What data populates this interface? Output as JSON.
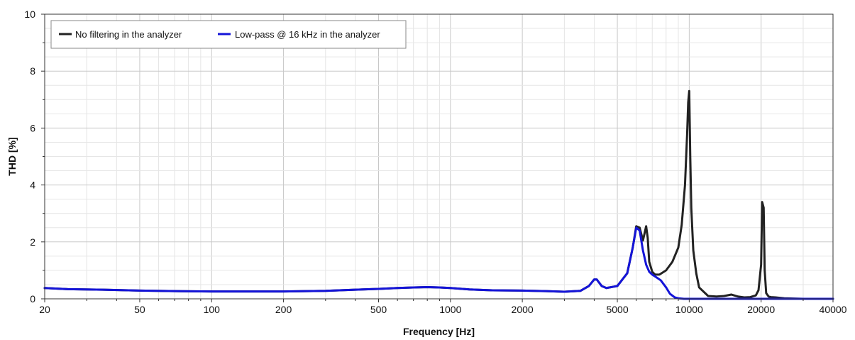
{
  "chart_data": {
    "type": "line",
    "title": "",
    "xlabel": "Frequency [Hz]",
    "ylabel": "THD [%]",
    "xscale": "log",
    "xlim": [
      20,
      40000
    ],
    "ylim": [
      0,
      10
    ],
    "grid": true,
    "legend_position": "top-left",
    "x_ticks": [
      20,
      50,
      100,
      200,
      500,
      1000,
      2000,
      5000,
      10000,
      20000,
      40000
    ],
    "y_ticks": [
      0,
      2,
      4,
      6,
      8,
      10
    ],
    "series": [
      {
        "name": "No filtering in the analyzer",
        "color": "#222222",
        "x": [
          20,
          25,
          35,
          50,
          70,
          100,
          150,
          200,
          300,
          400,
          500,
          600,
          700,
          800,
          900,
          1000,
          1200,
          1500,
          2000,
          2500,
          3000,
          3500,
          3800,
          4000,
          4100,
          4300,
          4500,
          5000,
          5500,
          5800,
          6000,
          6200,
          6400,
          6500,
          6600,
          6700,
          6800,
          7000,
          7200,
          7500,
          8000,
          8500,
          9000,
          9300,
          9600,
          9800,
          9900,
          10000,
          10100,
          10200,
          10400,
          10700,
          11000,
          12000,
          13000,
          14000,
          15000,
          16000,
          17000,
          18000,
          19000,
          19500,
          20000,
          20200,
          20500,
          20700,
          21000,
          21500,
          22000,
          23000,
          25000,
          30000,
          40000
        ],
        "values": [
          0.38,
          0.34,
          0.32,
          0.29,
          0.27,
          0.26,
          0.26,
          0.26,
          0.28,
          0.32,
          0.35,
          0.38,
          0.4,
          0.41,
          0.4,
          0.38,
          0.33,
          0.3,
          0.29,
          0.27,
          0.25,
          0.28,
          0.45,
          0.68,
          0.68,
          0.45,
          0.38,
          0.45,
          0.9,
          1.8,
          2.55,
          2.5,
          2.05,
          2.3,
          2.55,
          2.15,
          1.3,
          0.95,
          0.85,
          0.85,
          1.0,
          1.3,
          1.8,
          2.6,
          4.0,
          5.8,
          6.9,
          7.3,
          5.0,
          3.2,
          1.7,
          0.9,
          0.4,
          0.1,
          0.08,
          0.1,
          0.15,
          0.08,
          0.05,
          0.06,
          0.12,
          0.3,
          1.2,
          3.4,
          3.2,
          1.0,
          0.2,
          0.08,
          0.06,
          0.05,
          0.02,
          0.0,
          0.0
        ]
      },
      {
        "name": "Low-pass @ 16 kHz in the analyzer",
        "color": "#1414d8",
        "x": [
          20,
          25,
          35,
          50,
          70,
          100,
          150,
          200,
          300,
          400,
          500,
          600,
          700,
          800,
          900,
          1000,
          1200,
          1500,
          2000,
          2500,
          3000,
          3500,
          3800,
          4000,
          4100,
          4300,
          4500,
          5000,
          5500,
          5800,
          6000,
          6200,
          6400,
          6600,
          6800,
          7000,
          7300,
          7600,
          8000,
          8300,
          8700,
          9000,
          9500,
          10000,
          12000,
          20000,
          40000
        ],
        "values": [
          0.38,
          0.34,
          0.32,
          0.29,
          0.27,
          0.26,
          0.26,
          0.26,
          0.28,
          0.32,
          0.35,
          0.38,
          0.4,
          0.41,
          0.4,
          0.38,
          0.33,
          0.3,
          0.29,
          0.27,
          0.25,
          0.28,
          0.45,
          0.68,
          0.68,
          0.45,
          0.38,
          0.45,
          0.9,
          1.8,
          2.5,
          2.4,
          1.7,
          1.2,
          0.95,
          0.85,
          0.75,
          0.65,
          0.4,
          0.18,
          0.05,
          0.02,
          0.0,
          0.0,
          0.0,
          0.0,
          0.0
        ]
      }
    ]
  }
}
